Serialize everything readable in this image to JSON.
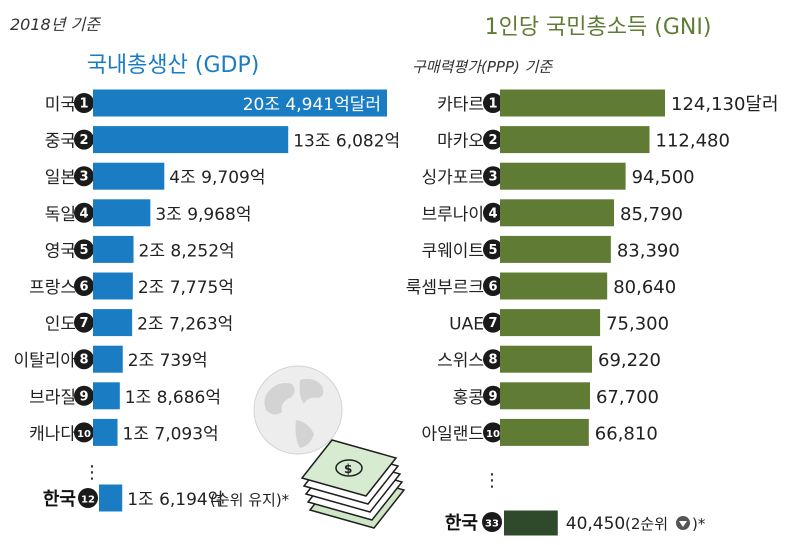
{
  "header": {
    "basis_note": "2018년 기준",
    "left_title": "국내총생산 (GDP)",
    "right_title": "1인당 국민총소득 (GNI)",
    "right_subtitle": "구매력평가(PPP) 기준"
  },
  "colors": {
    "gdp_bar": "#1a7dc4",
    "gni_bar": "#607c34",
    "gni_korea_bar": "#2e4a2b",
    "badge": "#1a1a1a",
    "badge_text": "#ffffff",
    "rank_arrow": "#555555"
  },
  "ellipsis": "⋮",
  "chart_data": [
    {
      "type": "bar",
      "orientation": "horizontal",
      "title": "국내총생산 (GDP)",
      "unit": "억달러",
      "categories": [
        "미국",
        "중국",
        "일본",
        "독일",
        "영국",
        "프랑스",
        "인도",
        "이탈리아",
        "브라질",
        "캐나다"
      ],
      "ranks": [
        "1",
        "2",
        "3",
        "4",
        "5",
        "6",
        "7",
        "8",
        "9",
        "10"
      ],
      "values": [
        204941,
        136082,
        49709,
        39968,
        28252,
        27775,
        27263,
        20739,
        18686,
        17093
      ],
      "value_labels": [
        "20조 4,941억달러",
        "13조 6,082억",
        "4조 9,709억",
        "3조 9,968억",
        "2조 8,252억",
        "2조 7,775억",
        "2조 7,263억",
        "2조 739억",
        "1조 8,686억",
        "1조 7,093억"
      ],
      "korea": {
        "category": "한국",
        "rank": "12",
        "value": 16194,
        "value_label": "1조 6,194억",
        "note": "(순위 유지)*"
      }
    },
    {
      "type": "bar",
      "orientation": "horizontal",
      "title": "1인당 국민총소득 (GNI)",
      "subtitle": "구매력평가(PPP) 기준",
      "unit": "달러",
      "categories": [
        "카타르",
        "마카오",
        "싱가포르",
        "브루나이",
        "쿠웨이트",
        "룩셈부르크",
        "UAE",
        "스위스",
        "홍콩",
        "아일랜드"
      ],
      "ranks": [
        "1",
        "2",
        "3",
        "4",
        "5",
        "6",
        "7",
        "8",
        "9",
        "10"
      ],
      "values": [
        124130,
        112480,
        94500,
        85790,
        83390,
        80640,
        75300,
        69220,
        67700,
        66810
      ],
      "value_labels": [
        "124,130달러",
        "112,480",
        "94,500",
        "85,790",
        "83,390",
        "80,640",
        "75,300",
        "69,220",
        "67,700",
        "66,810"
      ],
      "korea": {
        "category": "한국",
        "rank": "33",
        "value": 40450,
        "value_label": "40,450",
        "note_prefix": "(2순위",
        "note_suffix": ")*",
        "arrow_icon": "down-arrow-icon"
      }
    }
  ]
}
